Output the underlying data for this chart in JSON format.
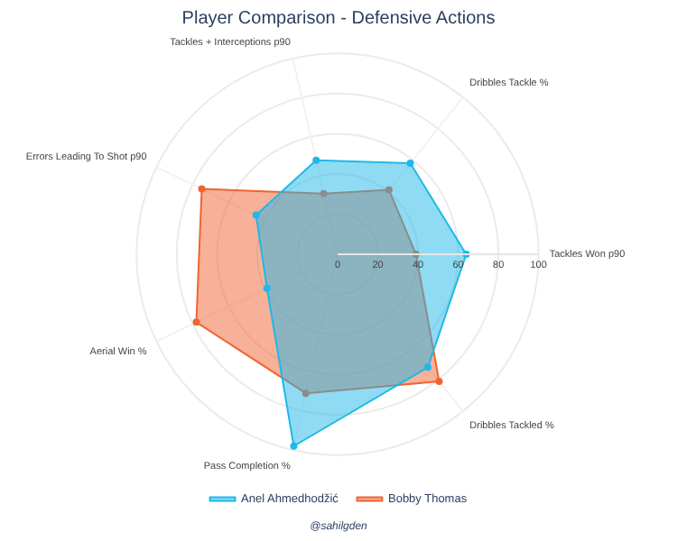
{
  "chart_data": {
    "type": "radar",
    "title": "Player Comparison - Defensive Actions",
    "categories": [
      "Tackles + Interceptions p90",
      "Dribbles Tackle %",
      "Tackles Won p90",
      "Dribbles Tackled %",
      "Pass Completion %",
      "Aerial Win %",
      "Errors Leading To Shot p90"
    ],
    "series": [
      {
        "name": "Anel Ahmedhodžić",
        "color": "#1fb8e8",
        "values": [
          48,
          58,
          64,
          72,
          98,
          39,
          45
        ]
      },
      {
        "name": "Bobby Thomas",
        "color": "#f06432",
        "values": [
          31,
          41,
          39,
          81,
          71,
          78,
          75
        ]
      }
    ],
    "ylim": [
      0,
      100
    ],
    "yticks": [
      0,
      20,
      40,
      60,
      80,
      100
    ],
    "grid": true,
    "legend": "bottom",
    "marker": "circle",
    "annotations": [
      "@sahilgden"
    ]
  }
}
